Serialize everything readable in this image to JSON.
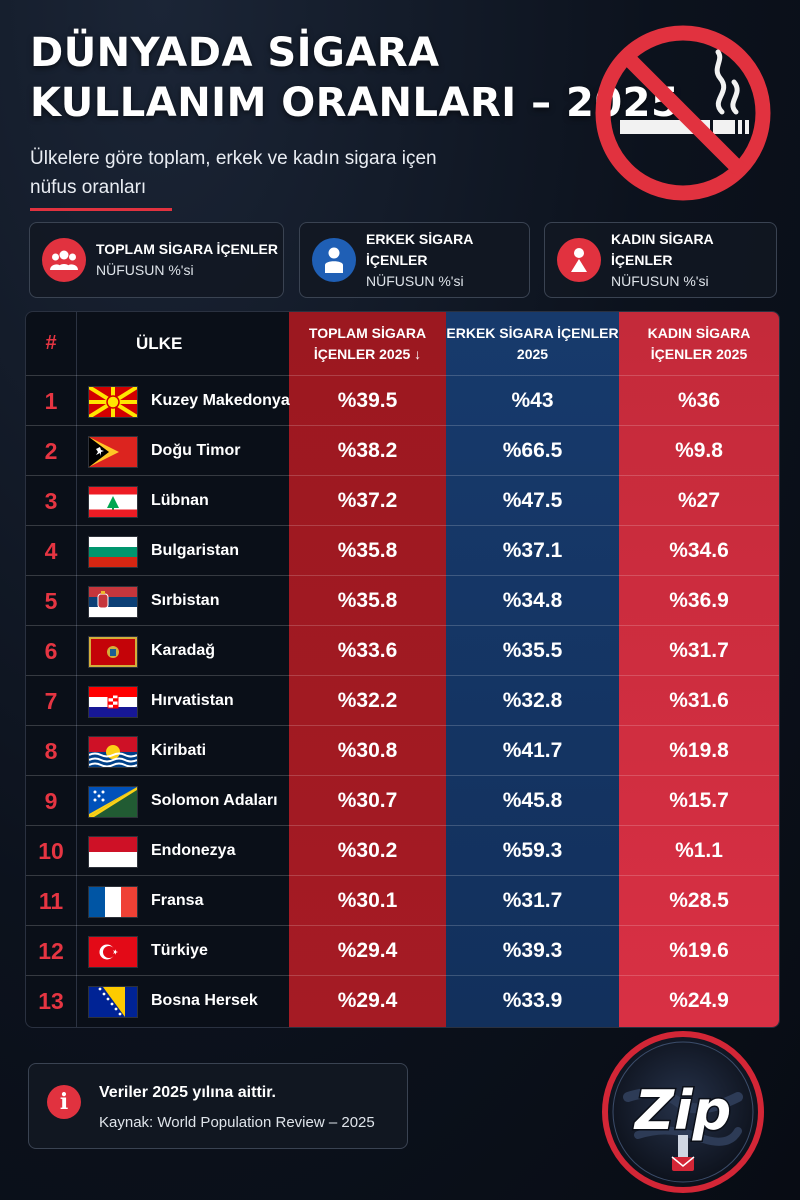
{
  "header": {
    "title_line1": "DÜNYADA SİGARA",
    "title_line2": "KULLANIM ORANLARI – 2025",
    "subtitle": "Ülkelere göre toplam, erkek ve kadın sigara içen nüfus oranları"
  },
  "legend": [
    {
      "title": "TOPLAM SİGARA İÇENLER",
      "subtitle": "NÜFUSUN %'si",
      "icon": "group-icon",
      "color": "#e1323f"
    },
    {
      "title": "ERKEK SİGARA İÇENLER",
      "subtitle": "NÜFUSUN %'si",
      "icon": "man-icon",
      "color": "#1f5fb5"
    },
    {
      "title": "KADIN SİGARA İÇENLER",
      "subtitle": "NÜFUSUN %'si",
      "icon": "woman-icon",
      "color": "#e1323f"
    }
  ],
  "table": {
    "headers": {
      "num": "#",
      "country": "ÜLKE",
      "total": "TOPLAM SİGARA İÇENLER 2025 ↓",
      "male": "ERKEK SİGARA İÇENLER 2025",
      "female": "KADIN SİGARA İÇENLER 2025"
    },
    "rows": [
      {
        "rank": "1",
        "country": "Kuzey Makedonya",
        "flag": "north-macedonia-flag",
        "total": "%39.5",
        "male": "%43",
        "female": "%36"
      },
      {
        "rank": "2",
        "country": "Doğu Timor",
        "flag": "east-timor-flag",
        "total": "%38.2",
        "male": "%66.5",
        "female": "%9.8"
      },
      {
        "rank": "3",
        "country": "Lübnan",
        "flag": "lebanon-flag",
        "total": "%37.2",
        "male": "%47.5",
        "female": "%27"
      },
      {
        "rank": "4",
        "country": "Bulgaristan",
        "flag": "bulgaria-flag",
        "total": "%35.8",
        "male": "%37.1",
        "female": "%34.6"
      },
      {
        "rank": "5",
        "country": "Sırbistan",
        "flag": "serbia-flag",
        "total": "%35.8",
        "male": "%34.8",
        "female": "%36.9"
      },
      {
        "rank": "6",
        "country": "Karadağ",
        "flag": "montenegro-flag",
        "total": "%33.6",
        "male": "%35.5",
        "female": "%31.7"
      },
      {
        "rank": "7",
        "country": "Hırvatistan",
        "flag": "croatia-flag",
        "total": "%32.2",
        "male": "%32.8",
        "female": "%31.6"
      },
      {
        "rank": "8",
        "country": "Kiribati",
        "flag": "kiribati-flag",
        "total": "%30.8",
        "male": "%41.7",
        "female": "%19.8"
      },
      {
        "rank": "9",
        "country": "Solomon Adaları",
        "flag": "solomon-islands-flag",
        "total": "%30.7",
        "male": "%45.8",
        "female": "%15.7"
      },
      {
        "rank": "10",
        "country": "Endonezya",
        "flag": "indonesia-flag",
        "total": "%30.2",
        "male": "%59.3",
        "female": "%1.1"
      },
      {
        "rank": "11",
        "country": "Fransa",
        "flag": "france-flag",
        "total": "%30.1",
        "male": "%31.7",
        "female": "%28.5"
      },
      {
        "rank": "12",
        "country": "Türkiye",
        "flag": "turkey-flag",
        "total": "%29.4",
        "male": "%39.3",
        "female": "%19.6"
      },
      {
        "rank": "13",
        "country": "Bosna Hersek",
        "flag": "bosnia-flag",
        "total": "%29.4",
        "male": "%33.9",
        "female": "%24.9"
      }
    ]
  },
  "footer": {
    "note_title": "Veriler 2025 yılına aittir.",
    "note_source": "Kaynak: World Population Review – 2025",
    "logo_text": "Zip"
  },
  "colors": {
    "accent_red": "#e1323f",
    "total_column": "#a51b24",
    "male_column": "#143563",
    "female_column": "#d3303f"
  }
}
